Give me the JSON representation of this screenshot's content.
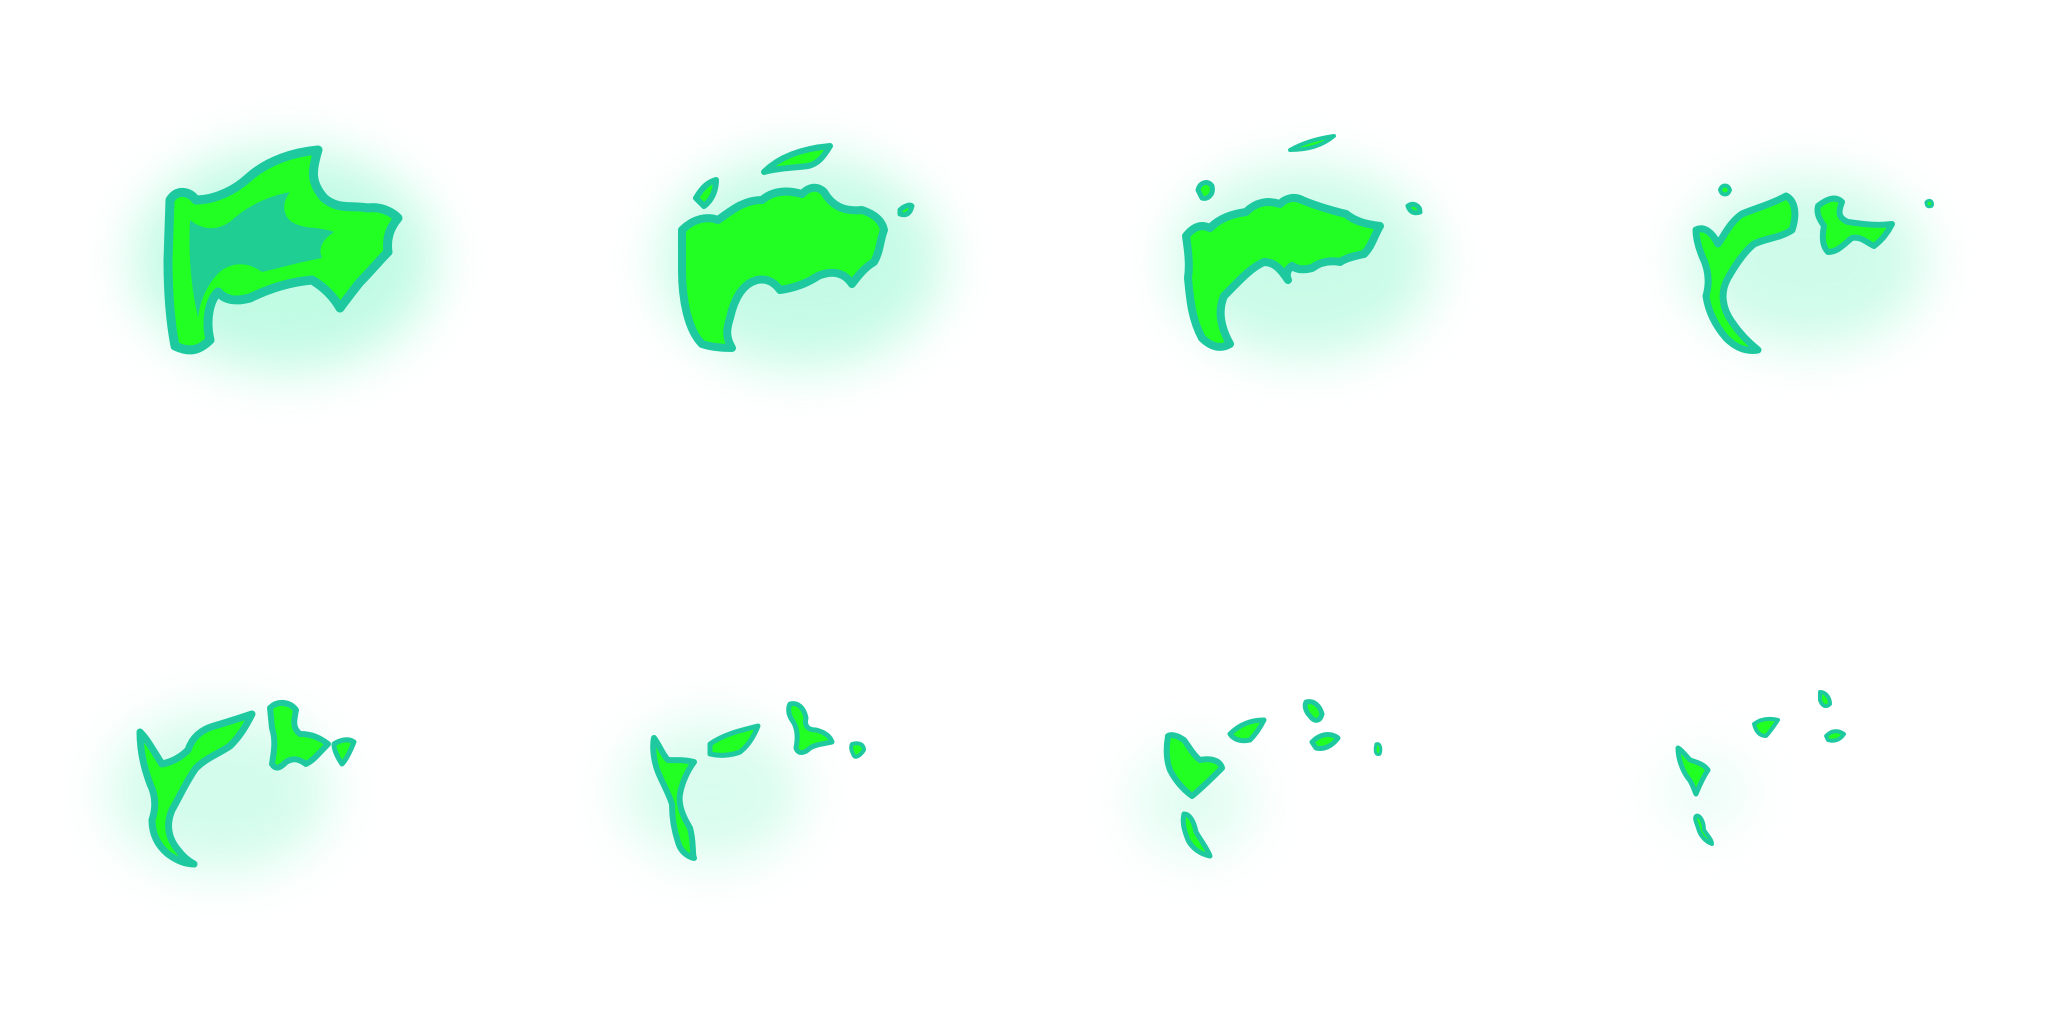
{
  "sprite_sheet": {
    "name": "",
    "columns": 4,
    "rows": 2,
    "frame_count": 8,
    "colors": {
      "background": "#ffffff",
      "fill": "#22ff22",
      "outline": "#1ec9a0",
      "glow": "#7ff7c8"
    },
    "frames": [
      {
        "index": 1,
        "dissolve_level": 0.0
      },
      {
        "index": 2,
        "dissolve_level": 0.15
      },
      {
        "index": 3,
        "dissolve_level": 0.3
      },
      {
        "index": 4,
        "dissolve_level": 0.45
      },
      {
        "index": 5,
        "dissolve_level": 0.6
      },
      {
        "index": 6,
        "dissolve_level": 0.72
      },
      {
        "index": 7,
        "dissolve_level": 0.85
      },
      {
        "index": 8,
        "dissolve_level": 0.95
      }
    ]
  }
}
